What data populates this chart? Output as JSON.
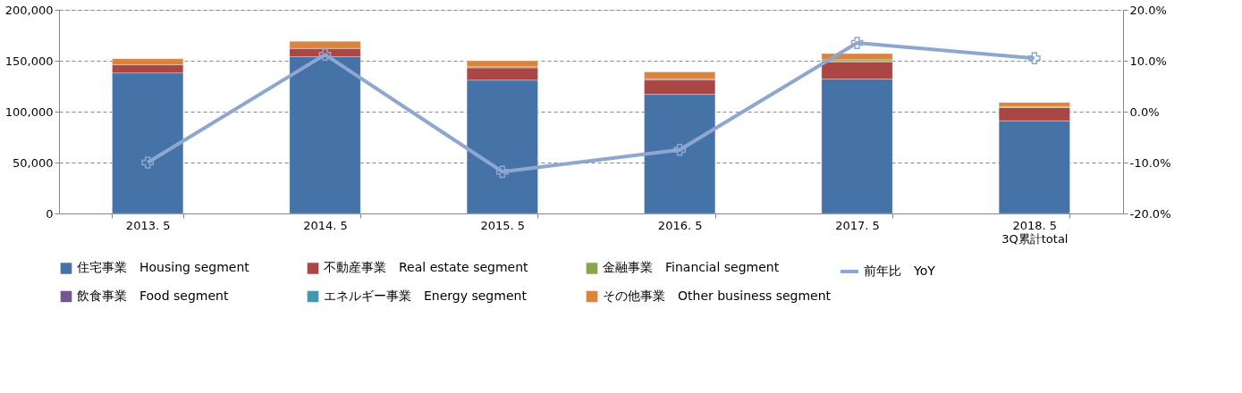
{
  "chart_data": {
    "type": "bar",
    "stacked": true,
    "categories": [
      "2013. 5",
      "2014. 5",
      "2015. 5",
      "2016. 5",
      "2017. 5",
      "2018. 5\n3Q累計total"
    ],
    "series": [
      {
        "name": "住宅事業　Housing segment",
        "color": "#4673a7",
        "values": [
          138000,
          154000,
          131000,
          117000,
          132000,
          91000
        ]
      },
      {
        "name": "不動産事業　Real estate segment",
        "color": "#aa4644",
        "values": [
          8000,
          8000,
          12000,
          14000,
          17000,
          13000
        ]
      },
      {
        "name": "金融事業　Financial segment",
        "color": "#89a54e",
        "values": [
          null,
          null,
          1000,
          null,
          1000,
          1000
        ]
      },
      {
        "name": "飲食事業　Food segment",
        "color": "#71588f",
        "values": [
          null,
          null,
          null,
          1000,
          null,
          null
        ]
      },
      {
        "name": "エネルギー事業　Energy segment",
        "color": "#4198af",
        "values": [
          null,
          null,
          null,
          null,
          1000,
          null
        ]
      },
      {
        "name": "その他事業　Other business segment",
        "color": "#db843d",
        "values": [
          6000,
          7000,
          6000,
          7000,
          6000,
          4000
        ]
      },
      {
        "name": "前年比　YoY",
        "type": "line",
        "axis": "y2",
        "color": "#8ea7d0",
        "marker": "cross",
        "values": [
          -10.0,
          11.2,
          -11.8,
          -7.5,
          13.5,
          10.5
        ]
      }
    ],
    "ylim": [
      0,
      200000
    ],
    "yticks": [
      {
        "value": 0,
        "label": "0"
      },
      {
        "value": 50000,
        "label": "50,000"
      },
      {
        "value": 100000,
        "label": "100,000"
      },
      {
        "value": 150000,
        "label": "150,000"
      },
      {
        "value": 200000,
        "label": "200,000"
      }
    ],
    "y2lim": [
      -20,
      20
    ],
    "y2ticks": [
      {
        "value": -20,
        "label": "-20.0%"
      },
      {
        "value": -10,
        "label": "-10.0%"
      },
      {
        "value": 0,
        "label": "0.0%"
      },
      {
        "value": 10,
        "label": "10.0%"
      },
      {
        "value": 20,
        "label": "20.0%"
      }
    ],
    "grid": "y",
    "legend": "bottom"
  }
}
